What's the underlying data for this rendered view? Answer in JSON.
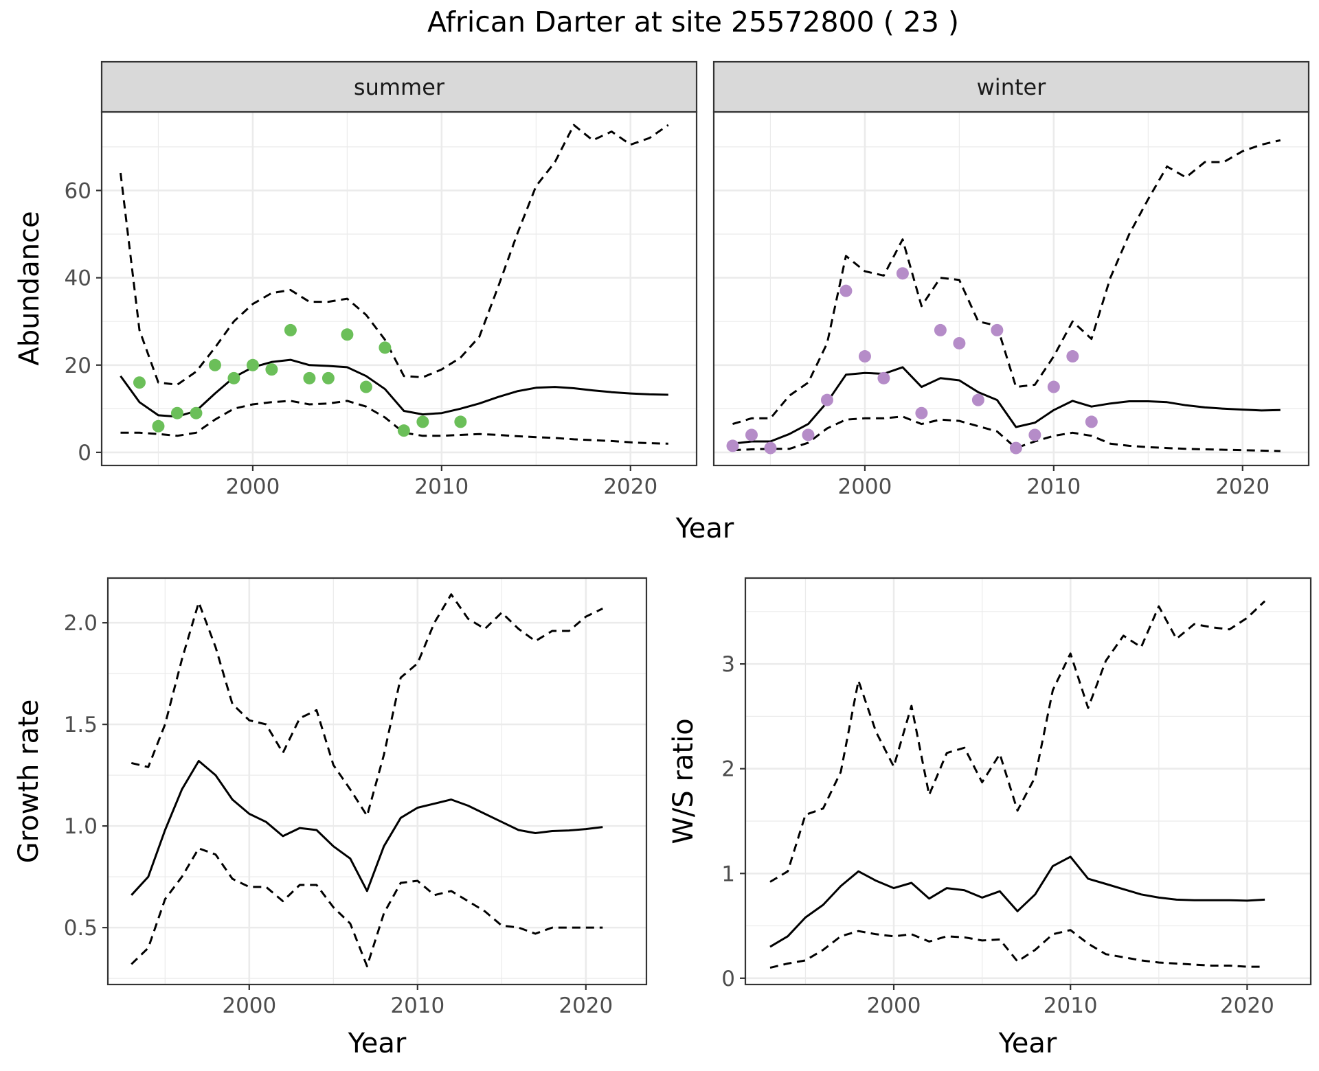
{
  "figure": {
    "title": "African Darter at site 25572800 ( 23 )"
  },
  "colors": {
    "summer_points": "#6BBF59",
    "winter_points": "#B58CC8",
    "lines": "#000000",
    "strip_fill": "#D9D9D9",
    "grid": "#EBEBEB"
  },
  "chart_data": [
    {
      "type": "line",
      "panel": "summer",
      "strip_label": "summer",
      "xlabel": "Year",
      "ylabel": "Abundance",
      "xlim": [
        1992,
        2023.5
      ],
      "ylim": [
        -3,
        78
      ],
      "xticks": [
        2000,
        2010,
        2020
      ],
      "yticks": [
        0,
        20,
        40,
        60
      ],
      "grid": true,
      "series": [
        {
          "style": "solid",
          "x": [
            1993,
            1994,
            1995,
            1996,
            1997,
            1998,
            1999,
            2000,
            2001,
            2002,
            2003,
            2004,
            2005,
            2006,
            2007,
            2008,
            2009,
            2010,
            2011,
            2012,
            2013,
            2014,
            2015,
            2016,
            2017,
            2018,
            2019,
            2020,
            2021,
            2022
          ],
          "y": [
            17.5,
            11.5,
            8.5,
            8.2,
            9.5,
            13.5,
            17.2,
            19.5,
            20.7,
            21.2,
            20,
            19.8,
            19.5,
            17.5,
            14.5,
            9.5,
            8.7,
            9,
            10,
            11.2,
            12.7,
            14,
            14.8,
            15,
            14.7,
            14.2,
            13.8,
            13.5,
            13.3,
            13.2
          ]
        },
        {
          "style": "dashed",
          "x": [
            1993,
            1994,
            1995,
            1996,
            1997,
            1998,
            1999,
            2000,
            2001,
            2002,
            2003,
            2004,
            2005,
            2006,
            2007,
            2008,
            2009,
            2010,
            2011,
            2012,
            2013,
            2014,
            2015,
            2016,
            2017,
            2018,
            2019,
            2020,
            2021,
            2022
          ],
          "y": [
            64,
            28,
            16,
            15.5,
            18.5,
            24,
            30,
            34,
            36.5,
            37.2,
            34.5,
            34.5,
            35.2,
            31.5,
            25.8,
            17.5,
            17.2,
            19,
            21.7,
            26.5,
            38,
            50,
            61,
            66.5,
            75,
            71.5,
            73.5,
            70.5,
            72,
            75
          ]
        },
        {
          "style": "dashed",
          "x": [
            1993,
            1994,
            1995,
            1996,
            1997,
            1998,
            1999,
            2000,
            2001,
            2002,
            2003,
            2004,
            2005,
            2006,
            2007,
            2008,
            2009,
            2010,
            2011,
            2012,
            2013,
            2014,
            2015,
            2016,
            2017,
            2018,
            2019,
            2020,
            2021,
            2022
          ],
          "y": [
            4.5,
            4.5,
            4.2,
            3.8,
            4.5,
            7.5,
            10,
            11,
            11.5,
            11.8,
            11,
            11.2,
            11.8,
            10.5,
            8,
            4.5,
            3.8,
            3.8,
            4,
            4.2,
            4,
            3.7,
            3.5,
            3.3,
            3,
            2.8,
            2.6,
            2.3,
            2.1,
            2
          ]
        }
      ],
      "points": {
        "x": [
          1994,
          1995,
          1996,
          1997,
          1998,
          1999,
          2000,
          2001,
          2002,
          2003,
          2004,
          2005,
          2006,
          2007,
          2008,
          2009,
          2011
        ],
        "y": [
          16,
          6,
          9,
          9,
          20,
          17,
          20,
          19,
          28,
          17,
          17,
          27,
          15,
          24,
          5,
          7,
          7
        ]
      }
    },
    {
      "type": "line",
      "panel": "winter",
      "strip_label": "winter",
      "xlabel": "Year",
      "ylabel": "",
      "xlim": [
        1992,
        2023.5
      ],
      "ylim": [
        -3,
        78
      ],
      "xticks": [
        2000,
        2010,
        2020
      ],
      "yticks": [
        0,
        20,
        40,
        60
      ],
      "grid": true,
      "series": [
        {
          "style": "solid",
          "x": [
            1993,
            1994,
            1995,
            1996,
            1997,
            1998,
            1999,
            2000,
            2001,
            2002,
            2003,
            2004,
            2005,
            2006,
            2007,
            2008,
            2009,
            2010,
            2011,
            2012,
            2013,
            2014,
            2015,
            2016,
            2017,
            2018,
            2019,
            2020,
            2021,
            2022
          ],
          "y": [
            2,
            2.5,
            2.5,
            4.2,
            6.5,
            11.5,
            17.8,
            18.2,
            18,
            19.5,
            15,
            17,
            16.5,
            13.8,
            12,
            5.8,
            6.8,
            9.7,
            11.8,
            10.5,
            11.2,
            11.7,
            11.7,
            11.5,
            10.8,
            10.3,
            10,
            9.8,
            9.6,
            9.7
          ]
        },
        {
          "style": "dashed",
          "x": [
            1993,
            1994,
            1995,
            1996,
            1997,
            1998,
            1999,
            2000,
            2001,
            2002,
            2003,
            2004,
            2005,
            2006,
            2007,
            2008,
            2009,
            2010,
            2011,
            2012,
            2013,
            2014,
            2015,
            2016,
            2017,
            2018,
            2019,
            2020,
            2021,
            2022
          ],
          "y": [
            6.5,
            7.8,
            7.8,
            13,
            16,
            25,
            45,
            41.5,
            40.5,
            48.8,
            33.5,
            40,
            39.5,
            30,
            29,
            15,
            15.5,
            22,
            30,
            26,
            40,
            50,
            58,
            65.5,
            63,
            66.5,
            66.5,
            69,
            70.5,
            71.5
          ]
        },
        {
          "style": "dashed",
          "x": [
            1993,
            1994,
            1995,
            1996,
            1997,
            1998,
            1999,
            2000,
            2001,
            2002,
            2003,
            2004,
            2005,
            2006,
            2007,
            2008,
            2009,
            2010,
            2011,
            2012,
            2013,
            2014,
            2015,
            2016,
            2017,
            2018,
            2019,
            2020,
            2021,
            2022
          ],
          "y": [
            0.5,
            0.7,
            0.8,
            0.8,
            2.2,
            5.5,
            7.5,
            7.8,
            7.8,
            8.2,
            6.5,
            7.5,
            7.2,
            6,
            4.8,
            1,
            2.5,
            3.8,
            4.5,
            3.8,
            2,
            1.5,
            1.2,
            1,
            0.8,
            0.7,
            0.6,
            0.5,
            0.4,
            0.3
          ]
        }
      ],
      "points": {
        "x": [
          1993,
          1994,
          1995,
          1997,
          1998,
          1999,
          2000,
          2001,
          2002,
          2003,
          2004,
          2005,
          2006,
          2007,
          2008,
          2009,
          2010,
          2011,
          2012
        ],
        "y": [
          1.5,
          4,
          1,
          4,
          12,
          37,
          22,
          17,
          41,
          9,
          28,
          25,
          12,
          28,
          1,
          4,
          15,
          22,
          7
        ]
      }
    },
    {
      "type": "line",
      "panel": "growth",
      "xlabel": "Year",
      "ylabel": "Growth rate",
      "xlim": [
        1991.6,
        2023.6
      ],
      "ylim": [
        0.22,
        2.22
      ],
      "xticks": [
        2000,
        2010,
        2020
      ],
      "yticks": [
        0.5,
        1.0,
        1.5,
        2.0
      ],
      "ytick_labels": [
        "0.5",
        "1.0",
        "1.5",
        "2.0"
      ],
      "grid": true,
      "series": [
        {
          "style": "solid",
          "x": [
            1993,
            1994,
            1995,
            1996,
            1997,
            1998,
            1999,
            2000,
            2001,
            2002,
            2003,
            2004,
            2005,
            2006,
            2007,
            2008,
            2009,
            2010,
            2011,
            2012,
            2013,
            2014,
            2015,
            2016,
            2017,
            2018,
            2019,
            2020,
            2021
          ],
          "y": [
            0.66,
            0.75,
            0.98,
            1.18,
            1.32,
            1.25,
            1.13,
            1.06,
            1.02,
            0.95,
            0.99,
            0.98,
            0.9,
            0.84,
            0.68,
            0.9,
            1.04,
            1.09,
            1.11,
            1.13,
            1.1,
            1.06,
            1.02,
            0.98,
            0.965,
            0.975,
            0.978,
            0.985,
            0.995
          ]
        },
        {
          "style": "dashed",
          "x": [
            1993,
            1994,
            1995,
            1996,
            1997,
            1998,
            1999,
            2000,
            2001,
            2002,
            2003,
            2004,
            2005,
            2006,
            2007,
            2008,
            2009,
            2010,
            2011,
            2012,
            2013,
            2014,
            2015,
            2016,
            2017,
            2018,
            2019,
            2020,
            2021
          ],
          "y": [
            1.31,
            1.29,
            1.5,
            1.82,
            2.1,
            1.88,
            1.6,
            1.52,
            1.5,
            1.36,
            1.53,
            1.57,
            1.3,
            1.18,
            1.05,
            1.35,
            1.73,
            1.8,
            2.0,
            2.14,
            2.02,
            1.97,
            2.05,
            1.97,
            1.91,
            1.96,
            1.96,
            2.03,
            2.07
          ]
        },
        {
          "style": "dashed",
          "x": [
            1993,
            1994,
            1995,
            1996,
            1997,
            1998,
            1999,
            2000,
            2001,
            2002,
            2003,
            2004,
            2005,
            2006,
            2007,
            2008,
            2009,
            2010,
            2011,
            2012,
            2013,
            2014,
            2015,
            2016,
            2017,
            2018,
            2019,
            2020,
            2021
          ],
          "y": [
            0.32,
            0.4,
            0.64,
            0.75,
            0.89,
            0.86,
            0.74,
            0.7,
            0.7,
            0.63,
            0.71,
            0.71,
            0.6,
            0.52,
            0.31,
            0.57,
            0.72,
            0.73,
            0.66,
            0.68,
            0.63,
            0.58,
            0.51,
            0.5,
            0.47,
            0.5,
            0.5,
            0.5,
            0.5
          ]
        }
      ]
    },
    {
      "type": "line",
      "panel": "ws_ratio",
      "xlabel": "Year",
      "ylabel": "W/S ratio",
      "xlim": [
        1991.6,
        2023.6
      ],
      "ylim": [
        -0.06,
        3.82
      ],
      "xticks": [
        2000,
        2010,
        2020
      ],
      "yticks": [
        0,
        1,
        2,
        3
      ],
      "grid": true,
      "series": [
        {
          "style": "solid",
          "x": [
            1993,
            1994,
            1995,
            1996,
            1997,
            1998,
            1999,
            2000,
            2001,
            2002,
            2003,
            2004,
            2005,
            2006,
            2007,
            2008,
            2009,
            2010,
            2011,
            2012,
            2013,
            2014,
            2015,
            2016,
            2017,
            2018,
            2019,
            2020,
            2021
          ],
          "y": [
            0.3,
            0.4,
            0.58,
            0.7,
            0.88,
            1.02,
            0.93,
            0.86,
            0.91,
            0.76,
            0.86,
            0.84,
            0.77,
            0.83,
            0.64,
            0.8,
            1.07,
            1.16,
            0.95,
            0.9,
            0.85,
            0.8,
            0.77,
            0.75,
            0.745,
            0.745,
            0.745,
            0.74,
            0.75
          ]
        },
        {
          "style": "dashed",
          "x": [
            1993,
            1994,
            1995,
            1996,
            1997,
            1998,
            1999,
            2000,
            2001,
            2002,
            2003,
            2004,
            2005,
            2006,
            2007,
            2008,
            2009,
            2010,
            2011,
            2012,
            2013,
            2014,
            2015,
            2016,
            2017,
            2018,
            2019,
            2020,
            2021
          ],
          "y": [
            0.92,
            1.02,
            1.56,
            1.62,
            1.97,
            2.84,
            2.35,
            2.02,
            2.6,
            1.75,
            2.15,
            2.2,
            1.87,
            2.14,
            1.6,
            1.92,
            2.75,
            3.1,
            2.58,
            3.03,
            3.27,
            3.16,
            3.55,
            3.24,
            3.38,
            3.35,
            3.33,
            3.44,
            3.6
          ]
        },
        {
          "style": "dashed",
          "x": [
            1993,
            1994,
            1995,
            1996,
            1997,
            1998,
            1999,
            2000,
            2001,
            2002,
            2003,
            2004,
            2005,
            2006,
            2007,
            2008,
            2009,
            2010,
            2011,
            2012,
            2013,
            2014,
            2015,
            2016,
            2017,
            2018,
            2019,
            2020,
            2021
          ],
          "y": [
            0.1,
            0.14,
            0.17,
            0.27,
            0.4,
            0.45,
            0.42,
            0.4,
            0.42,
            0.35,
            0.4,
            0.39,
            0.36,
            0.37,
            0.16,
            0.27,
            0.42,
            0.46,
            0.33,
            0.23,
            0.2,
            0.17,
            0.15,
            0.14,
            0.13,
            0.12,
            0.12,
            0.11,
            0.11
          ]
        }
      ]
    }
  ]
}
